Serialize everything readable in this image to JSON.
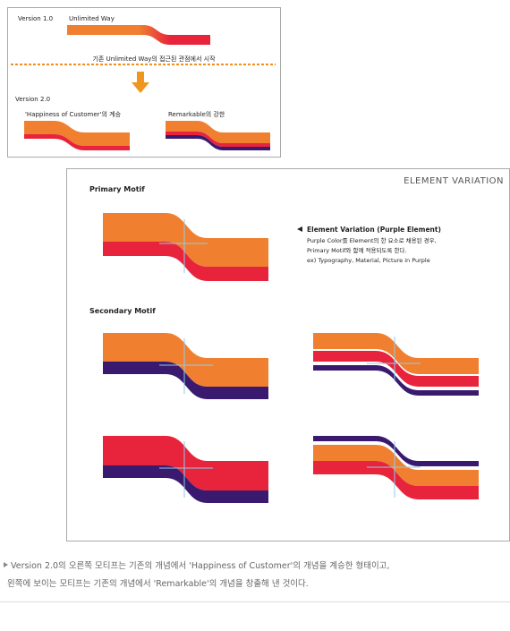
{
  "header": {
    "version1": "Version 1.0",
    "unlimited_way": "Unlimited Way",
    "transition": "기존 Unlimited Way의 접근된 관점에서 시작",
    "version2": "Version 2.0",
    "happiness": "'Happiness of Customer'의 계승",
    "remarkable": "Remarkable의 강한"
  },
  "panel": {
    "title": "ELEMENT VARIATION",
    "primary_motif": "Primary Motif",
    "secondary_motif": "Secondary Motif",
    "note": {
      "title": "Element Variation (Purple Element)",
      "lines": [
        "Purple Color를 Element의 한 요소로 채용된 경우,",
        "Primary Motif와 함께 적용되도록 한다.",
        "ex) Typography, Material, Picture in Purple"
      ]
    }
  },
  "caption": [
    "Version 2.0의 오른쪽 모티프는 기존의 개념에서 'Happiness of Customer'의 개념을 계승한 형태이고,",
    "왼쪽에 보이는 모티프는 기존의 개념에서 'Remarkable'의 개념을 창출해 낸 것이다."
  ]
}
